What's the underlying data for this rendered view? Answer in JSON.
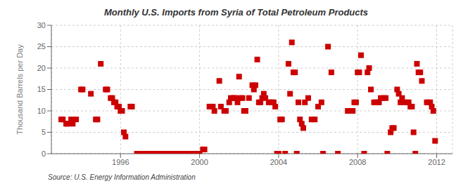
{
  "chart_data": {
    "type": "scatter",
    "title": "Monthly U.S. Imports from Syria of Total Petroleum Products",
    "ylabel": "Thousand Barrels per Day",
    "annotation": "Source: U.S. Energy Information Administration",
    "color": "#cc0000",
    "marker": "square",
    "grid": true,
    "xlim": [
      1992.5,
      2012.8
    ],
    "xticks": [
      1996,
      2000,
      2004,
      2008,
      2012
    ],
    "ylim": [
      0,
      30
    ],
    "yticks": [
      0,
      5,
      10,
      15,
      20,
      25,
      30
    ],
    "x": [
      1993.0,
      1993.08,
      1993.25,
      1993.33,
      1993.5,
      1993.58,
      1993.75,
      1994.0,
      1994.08,
      1994.5,
      1994.75,
      1994.83,
      1995.0,
      1995.25,
      1995.33,
      1995.5,
      1995.58,
      1995.67,
      1995.75,
      1995.83,
      1995.92,
      1996.0,
      1996.08,
      1996.17,
      1996.25,
      1996.5,
      1996.58,
      1996.83,
      1996.92,
      1997.0,
      1997.08,
      1997.17,
      1997.25,
      1997.33,
      1997.5,
      1997.67,
      1997.83,
      1997.92,
      1998.0,
      1998.08,
      1998.17,
      1998.25,
      1998.33,
      1998.5,
      1998.67,
      1998.83,
      1998.92,
      1999.0,
      1999.17,
      1999.33,
      1999.5,
      1999.67,
      1999.83,
      1999.92,
      2000.0,
      2000.17,
      2000.25,
      2000.5,
      2000.67,
      2000.75,
      2001.0,
      2001.08,
      2001.25,
      2001.33,
      2001.5,
      2001.58,
      2001.67,
      2001.75,
      2001.83,
      2001.92,
      2002.0,
      2002.08,
      2002.17,
      2002.25,
      2002.33,
      2002.5,
      2002.67,
      2002.75,
      2002.83,
      2002.92,
      2003.0,
      2003.08,
      2003.17,
      2003.25,
      2003.33,
      2003.5,
      2003.58,
      2003.67,
      2003.75,
      2003.83,
      2003.92,
      2004.0,
      2004.08,
      2004.17,
      2004.33,
      2004.5,
      2004.58,
      2004.67,
      2004.75,
      2004.83,
      2004.92,
      2005.0,
      2005.08,
      2005.17,
      2005.25,
      2005.33,
      2005.5,
      2005.67,
      2005.83,
      2006.0,
      2006.17,
      2006.25,
      2006.5,
      2006.67,
      2007.0,
      2007.5,
      2007.67,
      2007.75,
      2007.83,
      2007.92,
      2008.0,
      2008.08,
      2008.17,
      2008.33,
      2008.5,
      2008.58,
      2008.67,
      2008.83,
      2008.92,
      2009.0,
      2009.08,
      2009.17,
      2009.33,
      2009.42,
      2009.5,
      2009.67,
      2009.75,
      2009.83,
      2010.0,
      2010.08,
      2010.17,
      2010.25,
      2010.33,
      2010.5,
      2010.58,
      2010.67,
      2010.75,
      2010.83,
      2010.92,
      2011.0,
      2011.08,
      2011.17,
      2011.25,
      2011.5,
      2011.58,
      2011.67,
      2011.75,
      2011.83,
      2011.92
    ],
    "values": [
      8,
      8,
      7,
      7,
      8,
      7,
      8,
      15,
      15,
      14,
      8,
      8,
      21,
      15,
      15,
      13,
      13,
      12,
      12,
      11,
      11,
      10,
      10,
      5,
      4,
      11,
      11,
      0,
      0,
      0,
      0,
      0,
      0,
      0,
      0,
      0,
      0,
      0,
      0,
      0,
      0,
      0,
      0,
      0,
      0,
      0,
      0,
      0,
      0,
      0,
      0,
      0,
      0,
      0,
      0,
      1,
      1,
      11,
      11,
      10,
      17,
      11,
      10,
      10,
      12,
      13,
      13,
      13,
      13,
      12,
      18,
      13,
      13,
      10,
      10,
      13,
      16,
      15,
      16,
      22,
      12,
      12,
      13,
      14,
      13,
      12,
      12,
      12,
      12,
      11,
      0,
      0,
      8,
      8,
      0,
      21,
      14,
      26,
      19,
      19,
      0,
      12,
      8,
      7,
      6,
      12,
      13,
      8,
      8,
      11,
      12,
      0,
      25,
      19,
      0,
      10,
      10,
      10,
      12,
      12,
      19,
      19,
      23,
      0,
      19,
      20,
      15,
      12,
      12,
      12,
      12,
      13,
      13,
      13,
      0,
      5,
      6,
      6,
      15,
      14,
      12,
      13,
      12,
      12,
      12,
      11,
      11,
      5,
      0,
      21,
      19,
      19,
      17,
      12,
      12,
      12,
      11,
      10,
      3
    ]
  }
}
